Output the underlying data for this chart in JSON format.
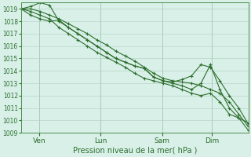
{
  "background_color": "#d8f0e8",
  "grid_color": "#b0cfc0",
  "line_color": "#2d6e2d",
  "marker_color": "#2d6e2d",
  "title": "Pression niveau de la mer( hPa )",
  "ylim": [
    1009,
    1019.5
  ],
  "yticks": [
    1009,
    1010,
    1011,
    1012,
    1013,
    1014,
    1015,
    1016,
    1017,
    1018,
    1019
  ],
  "x_tick_labels": [
    "Ven",
    "Lun",
    "Sam",
    "Dim"
  ],
  "x_tick_positions": [
    0.08,
    0.35,
    0.62,
    0.84
  ],
  "num_points": 25,
  "series": [
    [
      1019.0,
      1019.0,
      1018.8,
      1018.5,
      1018.2,
      1017.8,
      1017.4,
      1017.0,
      1016.5,
      1016.1,
      1015.6,
      1015.2,
      1014.8,
      1014.3,
      1013.8,
      1013.4,
      1013.2,
      1013.1,
      1013.0,
      1012.8,
      1012.5,
      1012.2,
      1011.5,
      1010.5,
      1009.5
    ],
    [
      1019.0,
      1018.5,
      1018.2,
      1018.0,
      1018.1,
      1017.5,
      1017.0,
      1016.5,
      1016.0,
      1015.5,
      1015.0,
      1014.7,
      1014.4,
      1014.2,
      1013.5,
      1013.2,
      1013.1,
      1013.3,
      1013.6,
      1014.5,
      1014.3,
      1013.2,
      1012.0,
      1011.0,
      1009.7
    ],
    [
      1019.0,
      1019.2,
      1019.5,
      1019.3,
      1018.0,
      1017.5,
      1017.0,
      1016.5,
      1016.0,
      1015.5,
      1015.0,
      1014.7,
      1014.4,
      1014.2,
      1013.5,
      1013.2,
      1013.0,
      1012.8,
      1012.5,
      1013.0,
      1014.5,
      1012.5,
      1011.0,
      1010.2,
      1009.2
    ],
    [
      1019.0,
      1018.8,
      1018.5,
      1018.2,
      1017.5,
      1017.0,
      1016.5,
      1016.0,
      1015.5,
      1015.1,
      1014.7,
      1014.3,
      1013.8,
      1013.4,
      1013.2,
      1013.0,
      1012.8,
      1012.5,
      1012.2,
      1012.0,
      1012.2,
      1011.5,
      1010.5,
      1010.2,
      1009.8
    ]
  ]
}
